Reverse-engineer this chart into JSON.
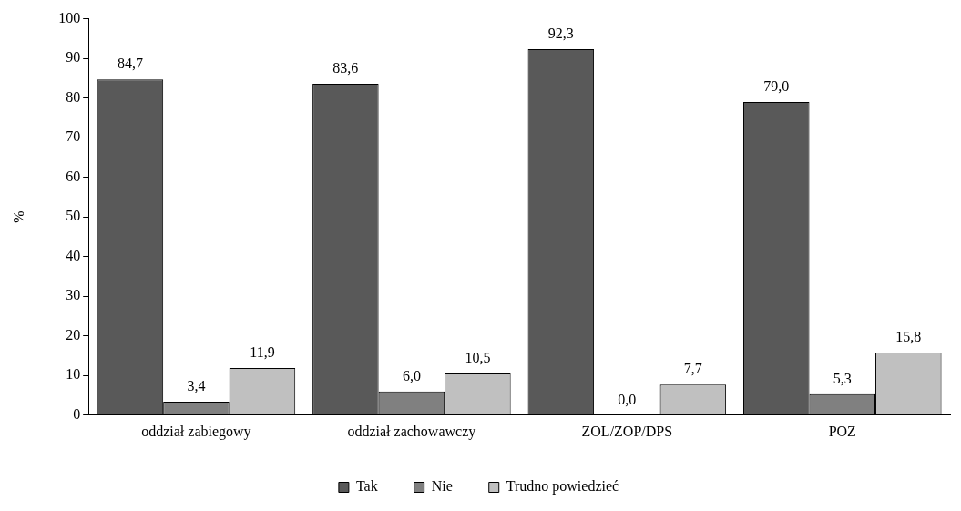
{
  "chart_data": {
    "type": "bar",
    "ylabel": "%",
    "categories": [
      "oddział zabiegowy",
      "oddział zachowawczy",
      "ZOL/ZOP/DPS",
      "POZ"
    ],
    "series": [
      {
        "name": "Tak",
        "color": "#595959",
        "values": [
          84.7,
          83.6,
          92.3,
          79.0
        ],
        "value_labels": [
          "84,7",
          "83,6",
          "92,3",
          "79,0"
        ]
      },
      {
        "name": "Nie",
        "color": "#808080",
        "values": [
          3.4,
          6.0,
          0.0,
          5.3
        ],
        "value_labels": [
          "3,4",
          "6,0",
          "0,0",
          "5,3"
        ]
      },
      {
        "name": "Trudno powiedzieć",
        "color": "#c0c0c0",
        "values": [
          11.9,
          10.5,
          7.7,
          15.8
        ],
        "value_labels": [
          "11,9",
          "10,5",
          "7,7",
          "15,8"
        ]
      }
    ],
    "ylim": [
      0,
      100
    ],
    "yticks": [
      0,
      10,
      20,
      30,
      40,
      50,
      60,
      70,
      80,
      90,
      100
    ],
    "grid": false,
    "legend": "bottom"
  }
}
